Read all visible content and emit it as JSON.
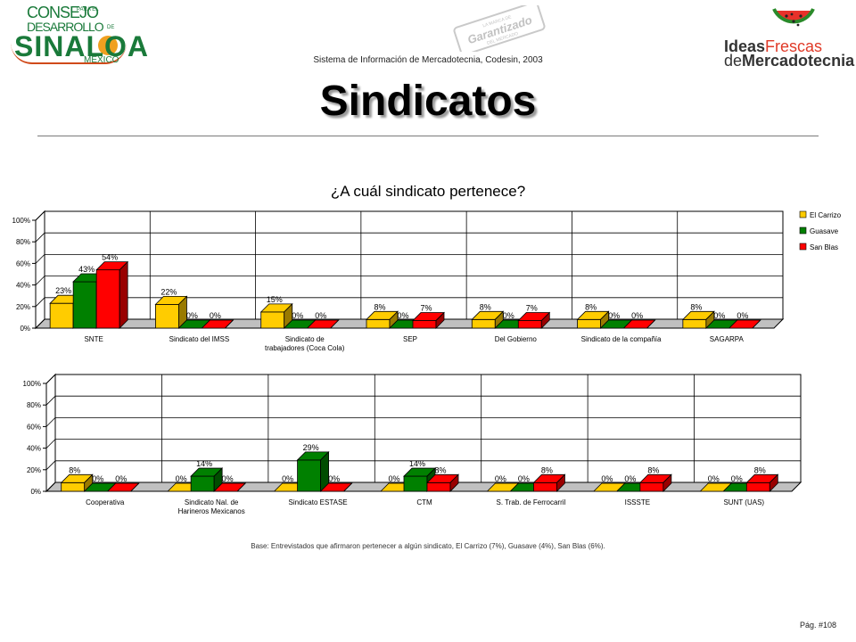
{
  "header": {
    "logo_left": {
      "line1": "CONSEJO",
      "line1_small": "PARA EL",
      "line2": "DESARROLLO",
      "line2_small": "DE",
      "line3": "SINALOA",
      "line4": "MÉXICO"
    },
    "stamp": {
      "top": "LA MARCA DE",
      "middle": "Garantizado",
      "bottom": "DEL MERCADO"
    },
    "logo_right": {
      "line1a": "Ideas",
      "line1b": "Frescas",
      "line2a": "de",
      "line2b": "Mercadotecnia"
    },
    "system_info": "Sistema de Información de Mercadotecnia, Codesin, 2003",
    "title": "Sindicatos"
  },
  "footer": {
    "base_note": "Base: Entrevistados que afirmaron pertenecer a algún sindicato,  El Carrizo (7%), Guasave (4%), San Blas (6%).",
    "page": "Pág. #108"
  },
  "colors": {
    "El Carrizo": "#ffcc00",
    "Guasave": "#008000",
    "San Blas": "#ff0000"
  },
  "chart_data": [
    {
      "type": "bar",
      "title": "¿A cuál sindicato pertenece?",
      "categories": [
        "SNTE",
        "Sindicato del IMSS",
        "Sindicato de trabajadores (Coca Cola)",
        "SEP",
        "Del Gobierno",
        "Sindicato de la compañía",
        "SAGARPA"
      ],
      "category_lines": [
        [
          "SNTE"
        ],
        [
          "Sindicato del IMSS"
        ],
        [
          "Sindicato de",
          "trabajadores (Coca Cola)"
        ],
        [
          "SEP"
        ],
        [
          "Del Gobierno"
        ],
        [
          "Sindicato de la compañía"
        ],
        [
          "SAGARPA"
        ]
      ],
      "series": [
        {
          "name": "El Carrizo",
          "values": [
            23,
            22,
            15,
            8,
            8,
            8,
            8
          ]
        },
        {
          "name": "Guasave",
          "values": [
            43,
            0,
            0,
            0,
            0,
            0,
            0
          ]
        },
        {
          "name": "San Blas",
          "values": [
            54,
            0,
            0,
            7,
            7,
            0,
            0
          ]
        }
      ],
      "yticks": [
        "0%",
        "20%",
        "40%",
        "60%",
        "80%",
        "100%"
      ],
      "ylim": [
        0,
        100
      ],
      "grid": true,
      "legend": "right"
    },
    {
      "type": "bar",
      "title": "",
      "categories": [
        "Cooperativa",
        "Sindicato Nal. de Harineros Mexicanos",
        "Sindicato ESTASE",
        "CTM",
        "S. Trab. de Ferrocarril",
        "ISSSTE",
        "SUNT (UAS)"
      ],
      "category_lines": [
        [
          "Cooperativa"
        ],
        [
          "Sindicato Nal. de",
          "Harineros Mexicanos"
        ],
        [
          "Sindicato ESTASE"
        ],
        [
          "CTM"
        ],
        [
          "S. Trab. de Ferrocarril"
        ],
        [
          "ISSSTE"
        ],
        [
          "SUNT (UAS)"
        ]
      ],
      "series": [
        {
          "name": "El Carrizo",
          "values": [
            8,
            0,
            0,
            0,
            0,
            0,
            0
          ]
        },
        {
          "name": "Guasave",
          "values": [
            0,
            14,
            29,
            14,
            0,
            0,
            0
          ]
        },
        {
          "name": "San Blas",
          "values": [
            0,
            0,
            0,
            8,
            8,
            8,
            8
          ]
        }
      ],
      "yticks": [
        "0%",
        "20%",
        "40%",
        "60%",
        "80%",
        "100%"
      ],
      "ylim": [
        0,
        100
      ],
      "grid": true,
      "legend": "none"
    }
  ]
}
